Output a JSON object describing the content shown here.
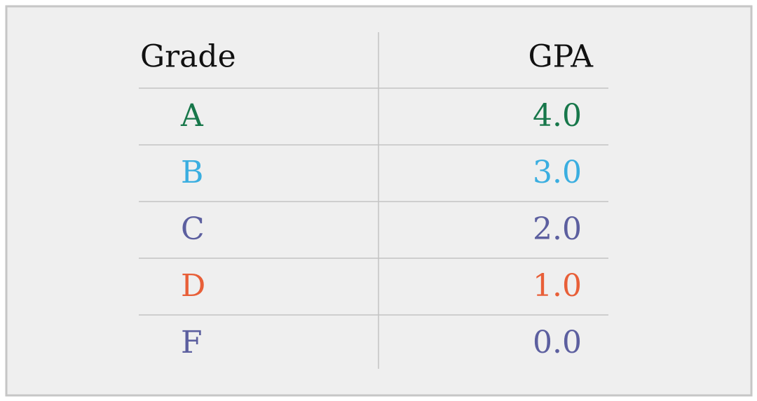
{
  "table": {
    "columns": [
      "Grade",
      "GPA"
    ],
    "rows": [
      [
        "A",
        "4.0"
      ],
      [
        "B",
        "3.0"
      ],
      [
        "C",
        "2.0"
      ],
      [
        "D",
        "1.0"
      ],
      [
        "F",
        "0.0"
      ]
    ],
    "row_colors": [
      "#17774a",
      "#3aaee0",
      "#5c5f9f",
      "#e85f38",
      "#5c5f9f"
    ],
    "header_color": "#111111"
  }
}
